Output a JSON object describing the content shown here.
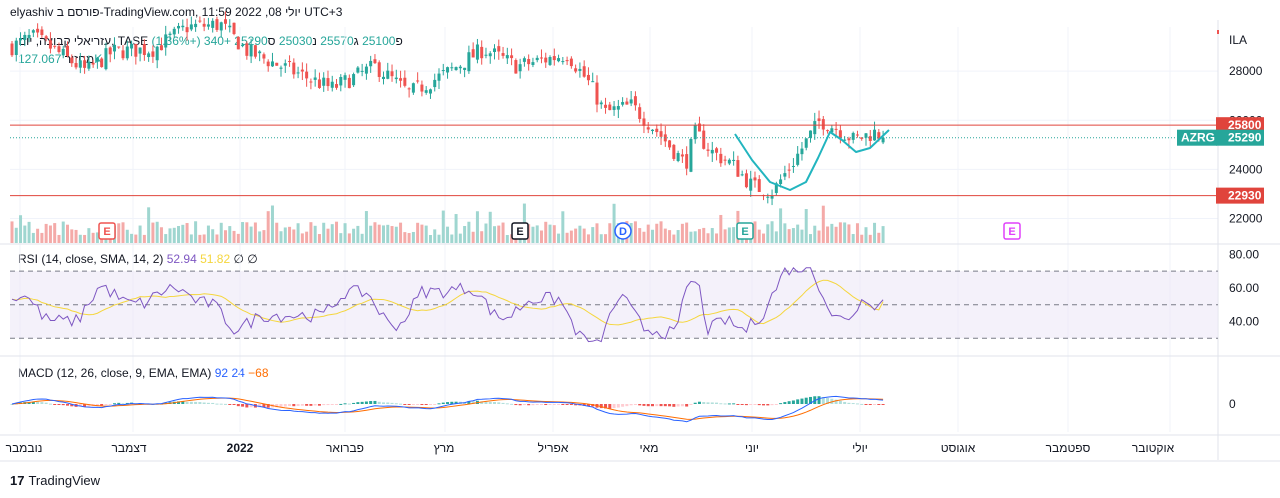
{
  "header": {
    "title": "elyashiv פורסם ב-TradingView.com, יולי 08, 2022 11:59 UTC+3"
  },
  "legend": {
    "symbol": "עזריאלי קבוצה, יום, TASE",
    "o_label": "פ",
    "o": "25100",
    "h_label": "ג",
    "h": "25570",
    "l_label": "נ",
    "l": "25030",
    "c_label": "ס",
    "c": "25290",
    "change": "+340 (+1.36%)",
    "vol_label": "מחזור",
    "vol": "127.067K"
  },
  "rsi": {
    "label": "RSI (14, close, SMA, 14, 2)",
    "value": "52.94",
    "sma": "51.82",
    "z1": "∅",
    "z2": "∅"
  },
  "macd": {
    "label": "MACD (12, 26, close, 9, EMA, EMA)",
    "hist": "92",
    "macd": "24",
    "signal": "−68"
  },
  "footer": {
    "brand": "TradingView",
    "logo": "17"
  },
  "colors": {
    "up": "#26a69a",
    "down": "#ef5350",
    "level": "#e0443c",
    "rsi": "#7e57c2",
    "rsi_ma": "#f5d63d",
    "macd": "#2962ff",
    "signal": "#ff6d00",
    "cup": "#22b5bf",
    "current": "#26a69a"
  },
  "chart_data": {
    "type": "candlestick",
    "currency_label": "ILA",
    "y_ticks": [
      22000,
      24000,
      26000,
      28000
    ],
    "ylim": [
      21000,
      30000
    ],
    "levels": [
      {
        "value": 25800,
        "label": "25800"
      },
      {
        "value": 22930,
        "label": "22930"
      }
    ],
    "current": {
      "symbol": "AZRG",
      "value": 25290,
      "label": "25290"
    },
    "x_labels": [
      "נובמבר",
      "דצמבר",
      "2022",
      "פברואר",
      "מרץ",
      "אפריל",
      "מאי",
      "יוני",
      "יולי",
      "אוגוסט",
      "ספטמבר",
      "אוקטובר"
    ],
    "monthly_path": [
      {
        "month": "נובמבר",
        "close": 29300
      },
      {
        "month": "דצמבר",
        "close": 28400
      },
      {
        "month": "2022",
        "close": 29600
      },
      {
        "month": "פברואר",
        "close": 28000
      },
      {
        "month": "מרץ",
        "close": 27200
      },
      {
        "month": "אפריל",
        "close": 28900
      },
      {
        "month": "מאי",
        "close": 27000
      },
      {
        "month": "יוני",
        "close": 23500
      },
      {
        "month": "יולי",
        "close": 25290
      }
    ],
    "events": [
      {
        "letter": "E",
        "color": "#ef5350"
      },
      {
        "letter": "E",
        "color": "#131722"
      },
      {
        "letter": "D",
        "color": "#2962ff"
      },
      {
        "letter": "E",
        "color": "#26a69a"
      },
      {
        "letter": "E",
        "color": "#e040fb"
      }
    ],
    "rsi": {
      "y_ticks": [
        40,
        60,
        80
      ],
      "bands": [
        30,
        50,
        70
      ],
      "last": 52.94,
      "sma_last": 51.82
    },
    "macd": {
      "y_ticks": [
        0
      ],
      "hist_last": 92,
      "macd_last": 24,
      "signal_last": -68
    }
  }
}
